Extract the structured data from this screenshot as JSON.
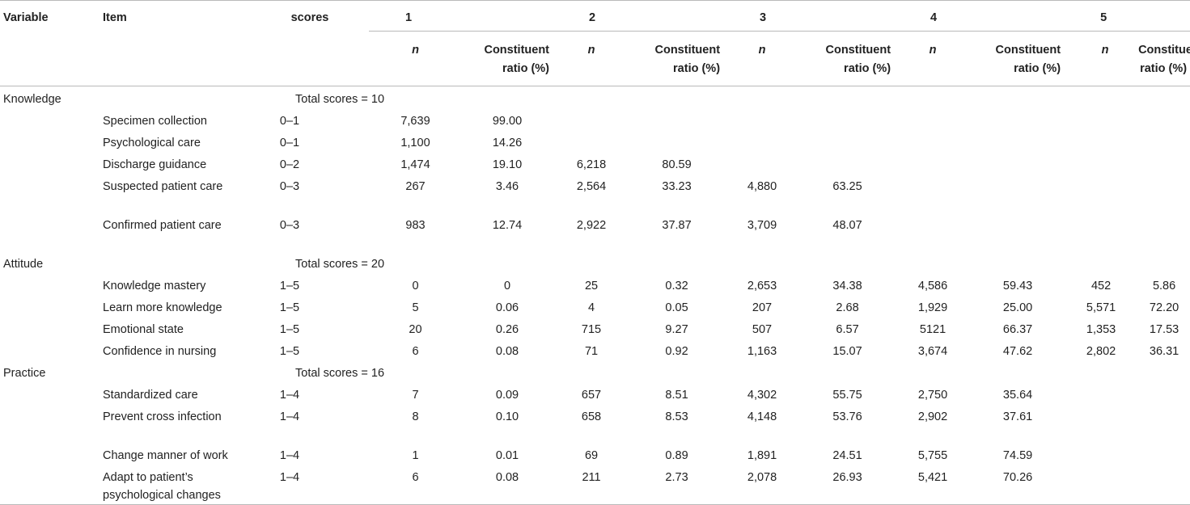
{
  "table": {
    "headers": {
      "variable": "Variable",
      "item": "Item",
      "scores": "scores",
      "groups": [
        "1",
        "2",
        "3",
        "4",
        "5"
      ],
      "n": "n",
      "ratio": "Constituent ratio (%)"
    },
    "sections": [
      {
        "variable": "Knowledge",
        "total": "Total scores = 10",
        "rows": [
          {
            "item": "Specimen collection",
            "score": "0–1",
            "vals": [
              "7,639",
              "99.00",
              "",
              "",
              "",
              "",
              "",
              "",
              "",
              ""
            ]
          },
          {
            "item": "Psychological care",
            "score": "0–1",
            "vals": [
              "1,100",
              "14.26",
              "",
              "",
              "",
              "",
              "",
              "",
              "",
              ""
            ]
          },
          {
            "item": "Discharge guidance",
            "score": "0–2",
            "vals": [
              "1,474",
              "19.10",
              "6,218",
              "80.59",
              "",
              "",
              "",
              "",
              "",
              ""
            ]
          },
          {
            "item": "Suspected patient care",
            "score": "0–3",
            "vals": [
              "267",
              "3.46",
              "2,564",
              "33.23",
              "4,880",
              "63.25",
              "",
              "",
              "",
              ""
            ]
          },
          {
            "item": "Confirmed patient care",
            "score": "0–3",
            "vals": [
              "983",
              "12.74",
              "2,922",
              "37.87",
              "3,709",
              "48.07",
              "",
              "",
              "",
              ""
            ]
          }
        ]
      },
      {
        "variable": "Attitude",
        "total": "Total scores = 20",
        "rows": [
          {
            "item": "Knowledge mastery",
            "score": "1–5",
            "vals": [
              "0",
              "0",
              "25",
              "0.32",
              "2,653",
              "34.38",
              "4,586",
              "59.43",
              "452",
              "5.86"
            ]
          },
          {
            "item": "Learn more knowledge",
            "score": "1–5",
            "vals": [
              "5",
              "0.06",
              "4",
              "0.05",
              "207",
              "2.68",
              "1,929",
              "25.00",
              "5,571",
              "72.20"
            ]
          },
          {
            "item": "Emotional state",
            "score": "1–5",
            "vals": [
              "20",
              "0.26",
              "715",
              "9.27",
              "507",
              "6.57",
              "5121",
              "66.37",
              "1,353",
              "17.53"
            ]
          },
          {
            "item": "Confidence in nursing",
            "score": "1–5",
            "vals": [
              "6",
              "0.08",
              "71",
              "0.92",
              "1,163",
              "15.07",
              "3,674",
              "47.62",
              "2,802",
              "36.31"
            ]
          }
        ]
      },
      {
        "variable": "Practice",
        "total": "Total scores = 16",
        "rows": [
          {
            "item": "Standardized care",
            "score": "1–4",
            "vals": [
              "7",
              "0.09",
              "657",
              "8.51",
              "4,302",
              "55.75",
              "2,750",
              "35.64",
              "",
              ""
            ]
          },
          {
            "item": "Prevent cross infection",
            "score": "1–4",
            "vals": [
              "8",
              "0.10",
              "658",
              "8.53",
              "4,148",
              "53.76",
              "2,902",
              "37.61",
              "",
              ""
            ]
          },
          {
            "item": "Change manner of work",
            "score": "1–4",
            "vals": [
              "1",
              "0.01",
              "69",
              "0.89",
              "1,891",
              "24.51",
              "5,755",
              "74.59",
              "",
              ""
            ]
          },
          {
            "item": "Adapt to patient’s psychological changes",
            "score": "1–4",
            "vals": [
              "6",
              "0.08",
              "211",
              "2.73",
              "2,078",
              "26.93",
              "5,421",
              "70.26",
              "",
              ""
            ]
          }
        ]
      }
    ]
  }
}
